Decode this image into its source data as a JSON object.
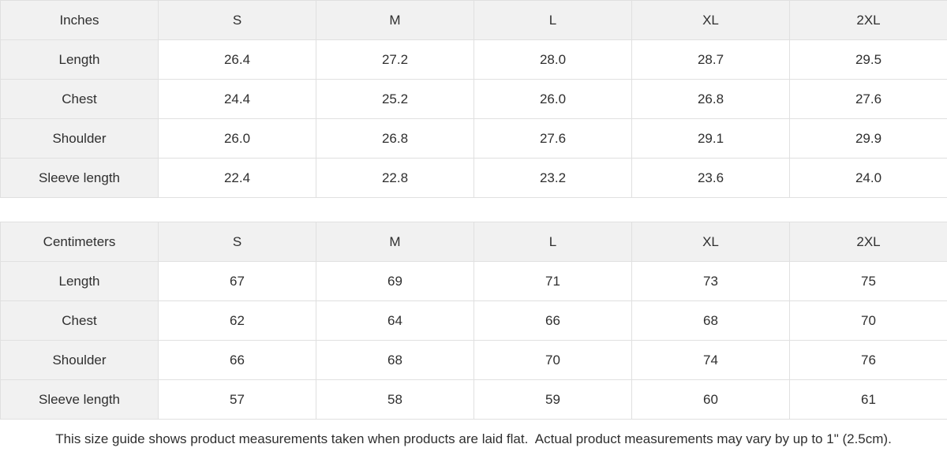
{
  "tables": [
    {
      "unit_label": "Inches",
      "sizes": [
        "S",
        "M",
        "L",
        "XL",
        "2XL"
      ],
      "rows": [
        {
          "label": "Length",
          "values": [
            "26.4",
            "27.2",
            "28.0",
            "28.7",
            "29.5"
          ]
        },
        {
          "label": "Chest",
          "values": [
            "24.4",
            "25.2",
            "26.0",
            "26.8",
            "27.6"
          ]
        },
        {
          "label": "Shoulder",
          "values": [
            "26.0",
            "26.8",
            "27.6",
            "29.1",
            "29.9"
          ]
        },
        {
          "label": "Sleeve length",
          "values": [
            "22.4",
            "22.8",
            "23.2",
            "23.6",
            "24.0"
          ]
        }
      ]
    },
    {
      "unit_label": "Centimeters",
      "sizes": [
        "S",
        "M",
        "L",
        "XL",
        "2XL"
      ],
      "rows": [
        {
          "label": "Length",
          "values": [
            "67",
            "69",
            "71",
            "73",
            "75"
          ]
        },
        {
          "label": "Chest",
          "values": [
            "62",
            "64",
            "66",
            "68",
            "70"
          ]
        },
        {
          "label": "Shoulder",
          "values": [
            "66",
            "68",
            "70",
            "74",
            "76"
          ]
        },
        {
          "label": "Sleeve length",
          "values": [
            "57",
            "58",
            "59",
            "60",
            "61"
          ]
        }
      ]
    }
  ],
  "footer": {
    "note": "This size guide shows product measurements taken when products are laid flat.  Actual product measurements may vary by up to 1\" (2.5cm)."
  },
  "colors": {
    "header_bg": "#f1f1f1",
    "border": "#e0e0e0",
    "text": "#2f2f2f",
    "background": "#ffffff"
  }
}
